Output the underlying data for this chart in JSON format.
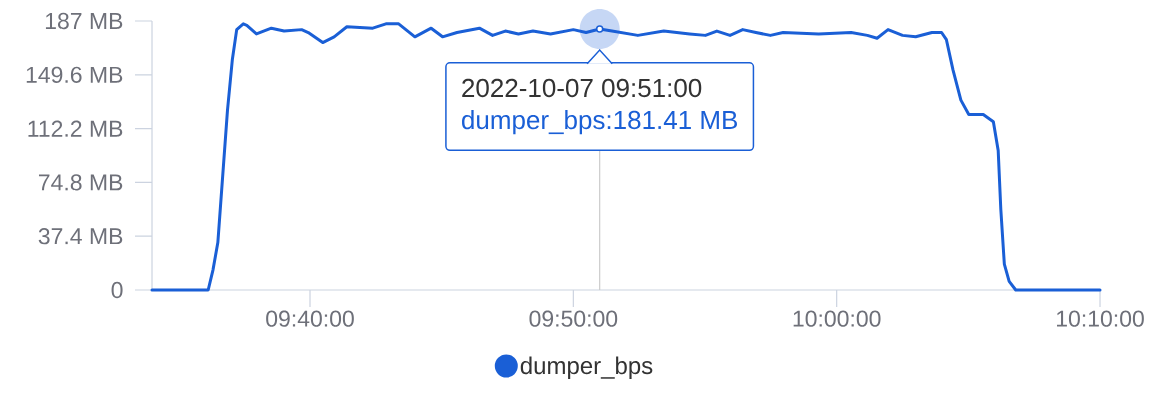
{
  "chart_data": {
    "type": "line",
    "x": [
      "2022-10-07T09:34:00",
      "2022-10-07T09:36:08",
      "2022-10-07T09:36:19",
      "2022-10-07T09:36:30",
      "2022-10-07T09:36:41",
      "2022-10-07T09:36:52",
      "2022-10-07T09:37:03",
      "2022-10-07T09:37:13",
      "2022-10-07T09:37:28",
      "2022-10-07T09:37:36",
      "2022-10-07T09:37:58",
      "2022-10-07T09:38:32",
      "2022-10-07T09:39:01",
      "2022-10-07T09:39:41",
      "2022-10-07T09:39:56",
      "2022-10-07T09:40:29",
      "2022-10-07T09:40:55",
      "2022-10-07T09:41:24",
      "2022-10-07T09:42:23",
      "2022-10-07T09:42:53",
      "2022-10-07T09:43:22",
      "2022-10-07T09:43:59",
      "2022-10-07T09:44:36",
      "2022-10-07T09:45:02",
      "2022-10-07T09:45:35",
      "2022-10-07T09:46:26",
      "2022-10-07T09:46:56",
      "2022-10-07T09:47:25",
      "2022-10-07T09:47:55",
      "2022-10-07T09:48:28",
      "2022-10-07T09:49:08",
      "2022-10-07T09:50:00",
      "2022-10-07T09:50:29",
      "2022-10-07T09:51:00",
      "2022-10-07T09:51:28",
      "2022-10-07T09:52:27",
      "2022-10-07T09:53:26",
      "2022-10-07T09:54:25",
      "2022-10-07T09:55:01",
      "2022-10-07T09:55:27",
      "2022-10-07T09:55:57",
      "2022-10-07T09:56:26",
      "2022-10-07T09:56:56",
      "2022-10-07T09:57:29",
      "2022-10-07T09:57:58",
      "2022-10-07T09:59:19",
      "2022-10-07T10:00:33",
      "2022-10-07T10:01:10",
      "2022-10-07T10:01:32",
      "2022-10-07T10:01:57",
      "2022-10-07T10:02:30",
      "2022-10-07T10:03:00",
      "2022-10-07T10:03:37",
      "2022-10-07T10:03:59",
      "2022-10-07T10:04:10",
      "2022-10-07T10:04:25",
      "2022-10-07T10:04:43",
      "2022-10-07T10:05:01",
      "2022-10-07T10:05:34",
      "2022-10-07T10:05:57",
      "2022-10-07T10:06:08",
      "2022-10-07T10:06:14",
      "2022-10-07T10:06:22",
      "2022-10-07T10:06:33",
      "2022-10-07T10:06:48",
      "2022-10-07T10:10:00"
    ],
    "series": [
      {
        "name": "dumper_bps",
        "color": "#1a5fd6",
        "values": [
          0,
          0,
          14,
          33,
          79,
          125,
          160,
          181,
          185,
          184,
          178,
          182,
          180,
          181,
          179,
          172,
          176,
          183,
          182,
          185,
          185,
          176,
          182,
          176,
          179,
          182,
          177,
          180,
          178,
          180,
          178,
          181,
          179,
          181.41,
          180,
          177,
          180,
          178,
          177,
          180,
          177,
          181,
          179,
          177,
          179,
          178,
          179,
          177,
          175,
          181,
          177,
          176,
          179,
          179,
          174,
          153,
          132,
          122,
          122,
          117,
          97,
          56,
          18,
          6,
          0,
          0
        ]
      }
    ],
    "xlim": [
      "2022-10-07T09:34:00",
      "2022-10-07T10:10:00"
    ],
    "xticks": [
      {
        "value": "2022-10-07T09:40:00",
        "label": "09:40:00"
      },
      {
        "value": "2022-10-07T09:50:00",
        "label": "09:50:00"
      },
      {
        "value": "2022-10-07T10:00:00",
        "label": "10:00:00"
      },
      {
        "value": "2022-10-07T10:10:00",
        "label": "10:10:00"
      }
    ],
    "ylim": [
      0,
      187
    ],
    "yticks": [
      0,
      {
        "value": 37.4,
        "label": "37.4 MB"
      },
      {
        "value": 74.8,
        "label": "74.8 MB"
      },
      {
        "value": 112.2,
        "label": "112.2 MB"
      },
      {
        "value": 149.6,
        "label": "149.6 MB"
      },
      {
        "value": 187,
        "label": "187 MB"
      }
    ],
    "legend": "bottom",
    "ref_lines": [
      {
        "axis": "x",
        "value": "2022-10-07T09:51:00",
        "color": "#cccccc"
      }
    ],
    "annotations": [
      {
        "text": "2022-10-07 09:51:00",
        "x": "2022-10-07T09:51:00",
        "y": 181.41
      },
      "dumper_bps:181.41 MB"
    ]
  }
}
